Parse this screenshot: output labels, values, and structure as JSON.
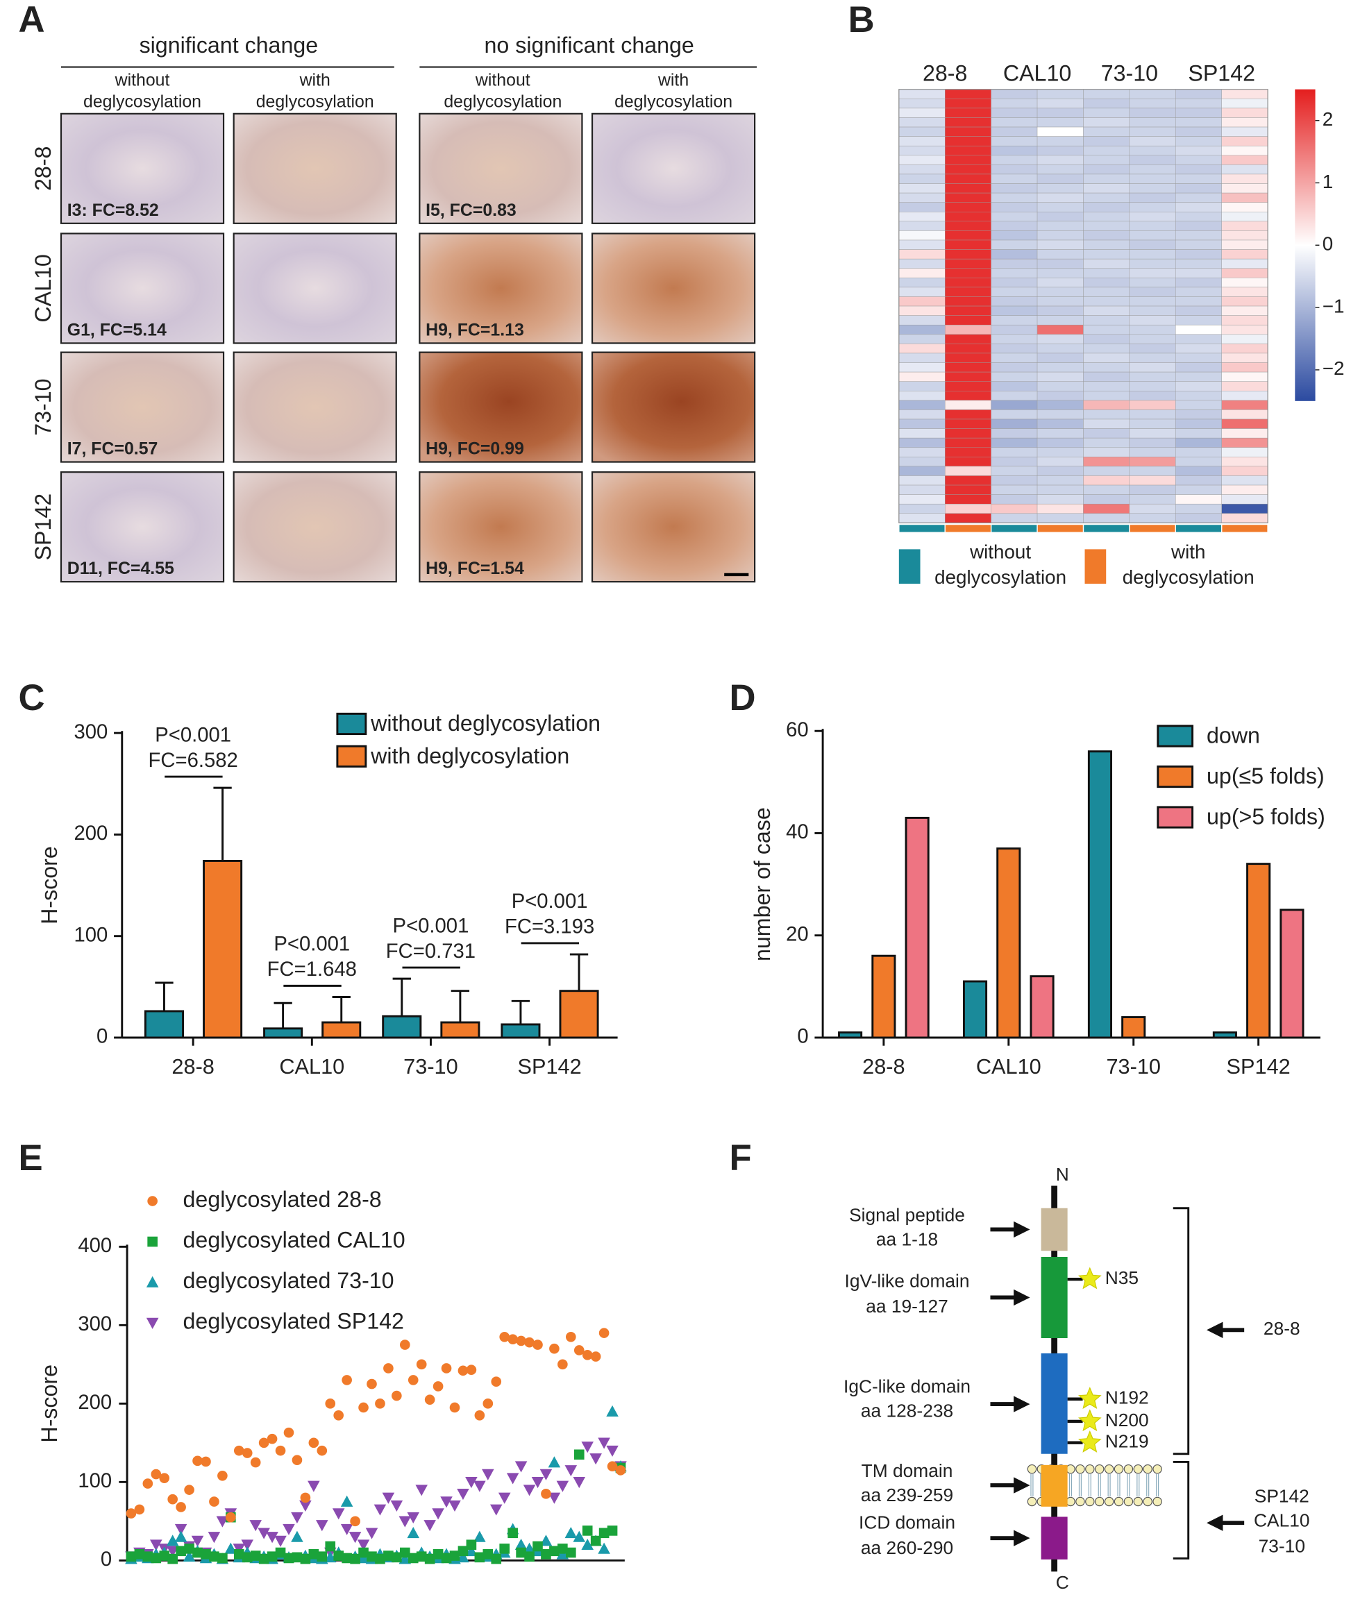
{
  "panel_labels": [
    "A",
    "B",
    "C",
    "D",
    "E",
    "F"
  ],
  "panel_a": {
    "groups": [
      "significant change",
      "no significant change"
    ],
    "conditions": [
      [
        "without",
        "deglycosylation"
      ],
      [
        "with",
        "deglycosylation"
      ]
    ],
    "rows": [
      "28-8",
      "CAL10",
      "73-10",
      "SP142"
    ],
    "tile_labels": [
      [
        "I3: FC=8.52",
        "I5, FC=0.83"
      ],
      [
        "G1, FC=5.14",
        "H9, FC=1.13"
      ],
      [
        "I7, FC=0.57",
        "H9, FC=0.99"
      ],
      [
        "D11, FC=4.55",
        "H9, FC=1.54"
      ]
    ]
  },
  "chart_data": [
    {
      "type": "heatmap",
      "column_groups": [
        "28-8",
        "CAL10",
        "73-10",
        "SP142"
      ],
      "legend": [
        {
          "name": [
            "without",
            "deglycosylation"
          ],
          "color": "#1a8a9a"
        },
        {
          "name": [
            "with",
            "deglycosylation"
          ],
          "color": "#f07a2a"
        }
      ],
      "colorbar": {
        "lim": [
          -2.5,
          2.5
        ],
        "ticks": [
          2,
          1,
          0,
          {
            "value": -1,
            "label": "−1"
          },
          {
            "value": -2,
            "label": "−2"
          }
        ],
        "colors": [
          "#2b4aa0",
          "#ffffff",
          "#e41e1e"
        ]
      },
      "values": [
        [
          -0.4,
          2.3,
          -0.7,
          -0.6,
          -0.6,
          -0.6,
          -0.7,
          0.3
        ],
        [
          -0.5,
          2.3,
          -0.6,
          -0.5,
          -0.7,
          -0.6,
          -0.6,
          -0.2
        ],
        [
          -0.3,
          2.3,
          -0.7,
          -0.7,
          -0.6,
          -0.7,
          -0.7,
          0.4
        ],
        [
          -0.5,
          2.3,
          -0.6,
          -0.6,
          -0.5,
          -0.6,
          -0.6,
          0.2
        ],
        [
          -0.6,
          2.3,
          -0.7,
          0.0,
          -0.6,
          -0.6,
          -0.7,
          -0.3
        ],
        [
          -0.4,
          2.3,
          -0.6,
          -0.6,
          -0.7,
          -0.5,
          -0.6,
          0.5
        ],
        [
          -0.5,
          2.3,
          -0.8,
          -0.7,
          -0.6,
          -0.6,
          -0.5,
          0.1
        ],
        [
          -0.3,
          2.3,
          -0.6,
          -0.5,
          -0.6,
          -0.7,
          -0.6,
          0.6
        ],
        [
          -0.5,
          2.3,
          -0.7,
          -0.6,
          -0.7,
          -0.6,
          -0.7,
          -0.4
        ],
        [
          -0.6,
          2.3,
          -0.6,
          -0.7,
          -0.6,
          -0.6,
          -0.6,
          0.3
        ],
        [
          -0.4,
          2.3,
          -0.7,
          -0.6,
          -0.5,
          -0.6,
          -0.7,
          0.2
        ],
        [
          -0.5,
          2.3,
          -0.6,
          -0.5,
          -0.6,
          -0.7,
          -0.6,
          0.7
        ],
        [
          -0.7,
          2.3,
          -0.7,
          -0.6,
          -0.7,
          -0.6,
          -0.5,
          0.1
        ],
        [
          -0.3,
          2.3,
          -0.6,
          -0.7,
          -0.6,
          -0.5,
          -0.6,
          -0.2
        ],
        [
          -0.5,
          2.3,
          -0.7,
          -0.6,
          -0.6,
          -0.6,
          -0.7,
          0.4
        ],
        [
          -0.1,
          2.3,
          -0.8,
          -0.6,
          -0.7,
          -0.6,
          -0.6,
          0.3
        ],
        [
          -0.4,
          2.3,
          -0.6,
          -0.5,
          -0.6,
          -0.7,
          -0.6,
          0.2
        ],
        [
          0.4,
          2.3,
          -0.9,
          -0.6,
          -0.6,
          -0.6,
          -0.7,
          0.5
        ],
        [
          -0.5,
          2.3,
          -0.7,
          -0.7,
          -0.5,
          -0.6,
          -0.6,
          -0.3
        ],
        [
          0.2,
          2.3,
          -0.6,
          -0.6,
          -0.6,
          -0.5,
          -0.5,
          0.6
        ],
        [
          -0.6,
          2.3,
          -0.7,
          -0.5,
          -0.7,
          -0.6,
          -0.7,
          0.1
        ],
        [
          -0.4,
          2.3,
          -0.6,
          -0.6,
          -0.6,
          -0.7,
          -0.6,
          0.3
        ],
        [
          0.6,
          2.3,
          -0.7,
          -0.6,
          -0.6,
          -0.6,
          -0.6,
          0.5
        ],
        [
          0.3,
          2.3,
          -0.8,
          -0.7,
          -0.5,
          -0.6,
          -0.7,
          0.2
        ],
        [
          -0.5,
          2.3,
          -0.6,
          -0.6,
          -0.6,
          -0.5,
          -0.6,
          0.4
        ],
        [
          -1.0,
          0.8,
          -0.7,
          1.6,
          -0.6,
          -0.6,
          0.0,
          0.3
        ],
        [
          -0.6,
          2.3,
          -0.6,
          -0.5,
          -0.7,
          -0.6,
          -0.6,
          -0.2
        ],
        [
          0.4,
          2.3,
          -0.7,
          -0.6,
          -0.6,
          -0.7,
          -0.5,
          0.5
        ],
        [
          -0.5,
          2.3,
          -0.6,
          -0.7,
          -0.5,
          -0.6,
          -0.6,
          0.3
        ],
        [
          -0.3,
          2.3,
          -0.7,
          -0.6,
          -0.6,
          -0.5,
          -0.7,
          0.6
        ],
        [
          0.2,
          2.3,
          -0.6,
          -0.5,
          -0.7,
          -0.6,
          -0.6,
          0.1
        ],
        [
          -0.6,
          2.3,
          -0.8,
          -0.6,
          -0.6,
          -0.6,
          -0.5,
          0.4
        ],
        [
          -0.4,
          2.3,
          -0.6,
          -0.7,
          -0.6,
          -0.7,
          -0.6,
          -0.3
        ],
        [
          -1.0,
          0.2,
          -1.2,
          -1.0,
          0.8,
          0.6,
          -0.6,
          1.4
        ],
        [
          -0.5,
          2.3,
          -0.6,
          -0.6,
          -0.6,
          -0.6,
          -0.7,
          0.3
        ],
        [
          -0.8,
          2.3,
          -1.1,
          -0.9,
          -0.5,
          -0.6,
          -0.8,
          1.6
        ],
        [
          -0.4,
          2.3,
          -0.7,
          -0.6,
          -0.7,
          -0.5,
          -0.6,
          0.2
        ],
        [
          -0.9,
          2.3,
          -1.0,
          -0.8,
          -0.6,
          -0.7,
          -1.0,
          1.2
        ],
        [
          -0.5,
          2.3,
          -0.6,
          -0.6,
          -0.5,
          -0.6,
          -0.6,
          -0.2
        ],
        [
          -0.6,
          2.3,
          -0.7,
          -0.5,
          1.2,
          1.1,
          -0.6,
          0.3
        ],
        [
          -1.0,
          0.4,
          -0.6,
          -0.7,
          -0.6,
          -0.6,
          -0.9,
          0.5
        ],
        [
          -0.4,
          2.3,
          -0.7,
          -0.6,
          0.5,
          0.4,
          -0.7,
          -0.4
        ],
        [
          -0.5,
          2.3,
          -0.6,
          -0.6,
          -0.6,
          -0.7,
          -0.6,
          0.2
        ],
        [
          -0.3,
          2.3,
          -0.7,
          -0.5,
          -0.7,
          -0.6,
          0.1,
          -0.3
        ],
        [
          -0.6,
          0.5,
          0.6,
          0.3,
          1.5,
          -0.5,
          -0.6,
          -2.3
        ],
        [
          -0.4,
          2.3,
          -0.6,
          -0.6,
          -0.6,
          -0.6,
          -0.7,
          0.4
        ]
      ]
    },
    {
      "type": "bar",
      "ylabel": "H-score",
      "categories": [
        "28-8",
        "CAL10",
        "73-10",
        "SP142"
      ],
      "ylim": [
        0,
        300
      ],
      "yticks": [
        0,
        100,
        200,
        300
      ],
      "series": [
        {
          "name": "without deglycosylation",
          "color": "#1a8a9a",
          "values": [
            26,
            9,
            21,
            13
          ],
          "errors": [
            28,
            25,
            37,
            23
          ]
        },
        {
          "name": "with deglycosylation",
          "color": "#f07a2a",
          "values": [
            174,
            15,
            15,
            46
          ],
          "errors": [
            72,
            25,
            31,
            36
          ]
        }
      ],
      "annotations": [
        [
          "P<0.001",
          "FC=6.582"
        ],
        [
          "P<0.001",
          "FC=1.648"
        ],
        [
          "P<0.001",
          "FC=0.731"
        ],
        [
          "P<0.001",
          "FC=3.193"
        ]
      ]
    },
    {
      "type": "bar",
      "ylabel": "number of case",
      "categories": [
        "28-8",
        "CAL10",
        "73-10",
        "SP142"
      ],
      "ylim": [
        0,
        60
      ],
      "yticks": [
        0,
        20,
        40,
        60
      ],
      "series": [
        {
          "name": "down",
          "color": "#1a8a9a",
          "values": [
            1,
            11,
            56,
            1
          ]
        },
        {
          "name": "up(≤5 folds)",
          "color": "#f07a2a",
          "values": [
            16,
            37,
            4,
            34
          ]
        },
        {
          "name": "up(>5 folds)",
          "color": "#ee7482",
          "values": [
            43,
            12,
            0,
            25
          ]
        }
      ]
    },
    {
      "type": "scatter",
      "ylabel": "H-score",
      "ylim": [
        0,
        400
      ],
      "yticks": [
        0,
        100,
        200,
        300,
        400
      ],
      "series": [
        {
          "name": "deglycosylated 28-8",
          "color": "#f07a2a",
          "marker": "circle",
          "values": [
            60,
            65,
            98,
            110,
            105,
            78,
            68,
            90,
            127,
            126,
            75,
            108,
            55,
            140,
            137,
            125,
            150,
            155,
            140,
            163,
            128,
            80,
            150,
            140,
            200,
            185,
            230,
            50,
            195,
            225,
            200,
            245,
            210,
            275,
            230,
            250,
            205,
            222,
            245,
            195,
            242,
            243,
            185,
            200,
            228,
            285,
            282,
            280,
            278,
            275,
            85,
            270,
            250,
            285,
            268,
            262,
            260,
            290,
            120,
            115
          ]
        },
        {
          "name": "deglycosylated CAL10",
          "color": "#1aa33a",
          "marker": "square",
          "values": [
            5,
            8,
            5,
            3,
            6,
            2,
            12,
            15,
            10,
            8,
            5,
            3,
            55,
            8,
            4,
            6,
            2,
            5,
            10,
            3,
            4,
            2,
            8,
            5,
            18,
            6,
            3,
            2,
            10,
            5,
            2,
            6,
            4,
            10,
            3,
            5,
            2,
            8,
            3,
            6,
            12,
            20,
            4,
            8,
            2,
            15,
            35,
            10,
            5,
            18,
            8,
            12,
            15,
            10,
            135,
            38,
            25,
            35,
            38,
            118
          ]
        },
        {
          "name": "deglycosylated 73-10",
          "color": "#1a9aaa",
          "marker": "triangle-up",
          "values": [
            2,
            5,
            3,
            8,
            10,
            25,
            30,
            5,
            12,
            3,
            8,
            2,
            15,
            4,
            10,
            3,
            5,
            2,
            8,
            4,
            30,
            6,
            3,
            2,
            4,
            10,
            75,
            5,
            3,
            2,
            8,
            4,
            6,
            2,
            35,
            10,
            5,
            3,
            8,
            2,
            4,
            12,
            30,
            5,
            8,
            10,
            40,
            20,
            15,
            12,
            25,
            125,
            8,
            35,
            30,
            20,
            25,
            15,
            190,
            120
          ]
        },
        {
          "name": "deglycosylated SP142",
          "color": "#8a4ab0",
          "marker": "triangle-down",
          "values": [
            5,
            10,
            8,
            20,
            15,
            12,
            40,
            18,
            25,
            10,
            30,
            50,
            60,
            15,
            20,
            45,
            35,
            30,
            25,
            40,
            55,
            70,
            95,
            45,
            10,
            60,
            40,
            30,
            20,
            35,
            65,
            80,
            70,
            50,
            55,
            90,
            45,
            60,
            75,
            70,
            85,
            100,
            95,
            110,
            65,
            80,
            105,
            120,
            90,
            100,
            110,
            80,
            95,
            115,
            100,
            145,
            130,
            150,
            140,
            120
          ]
        }
      ]
    }
  ],
  "panel_f": {
    "n_label": "N",
    "c_label": "C",
    "domains": [
      {
        "name": "Signal peptide",
        "range": "aa 1-18"
      },
      {
        "name": "IgV-like domain",
        "range": "aa 19-127"
      },
      {
        "name": "IgC-like domain",
        "range": "aa 128-238"
      },
      {
        "name": "TM domain",
        "range": "aa 239-259"
      },
      {
        "name": "ICD domain",
        "range": "aa 260-290"
      }
    ],
    "sites": [
      "N35",
      "N192",
      "N200",
      "N219"
    ],
    "antibodies": [
      [
        "28-8"
      ],
      [
        "SP142",
        "CAL10",
        "73-10"
      ]
    ]
  }
}
